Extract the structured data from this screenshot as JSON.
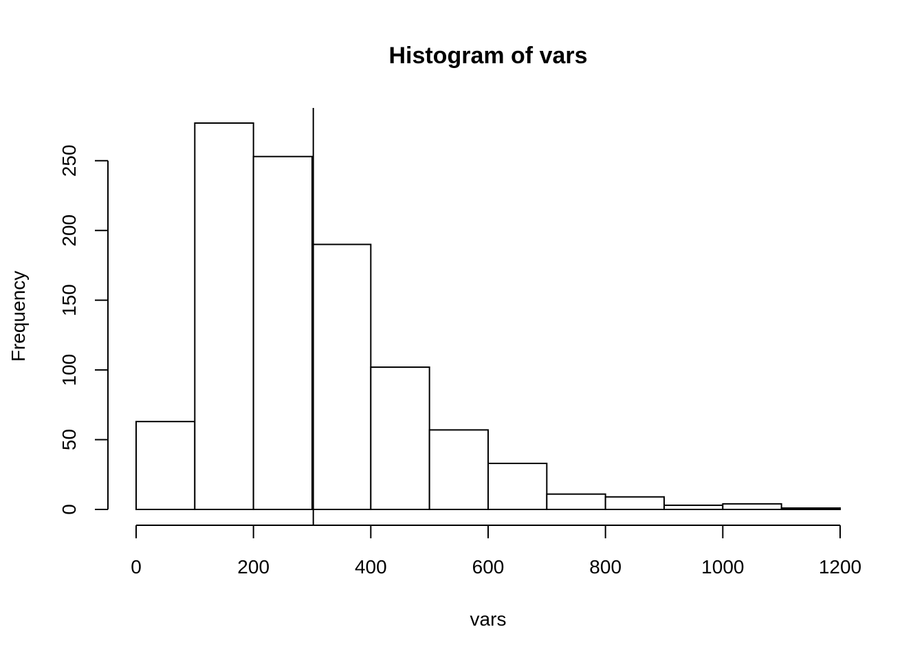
{
  "chart_data": {
    "type": "bar",
    "title": "Histogram of vars",
    "xlabel": "vars",
    "ylabel": "Frequency",
    "bin_edges": [
      0,
      100,
      200,
      300,
      400,
      500,
      600,
      700,
      800,
      900,
      1000,
      1100,
      1200
    ],
    "values": [
      63,
      277,
      253,
      190,
      102,
      57,
      33,
      11,
      9,
      3,
      4,
      1
    ],
    "xlim": [
      0,
      1200
    ],
    "ylim": [
      0,
      277
    ],
    "x_ticks": [
      0,
      200,
      400,
      600,
      800,
      1000,
      1200
    ],
    "y_ticks": [
      0,
      50,
      100,
      150,
      200,
      250
    ],
    "vline": 302,
    "grid": false,
    "legend": "none"
  }
}
